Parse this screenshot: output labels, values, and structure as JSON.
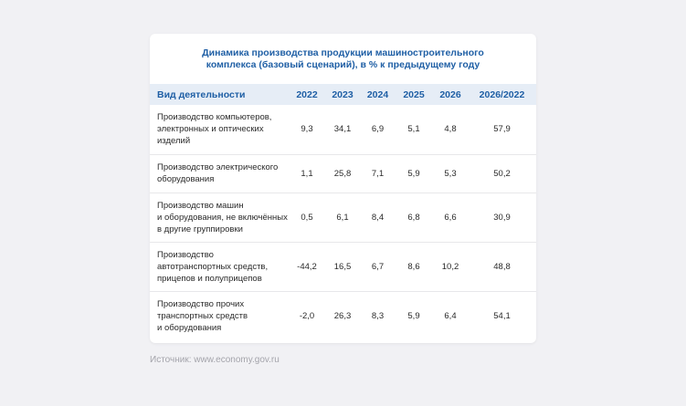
{
  "title": {
    "line1": "Динамика производства продукции машиностроительного",
    "line2": "комплекса (базовый сценарий), в % к предыдущему году"
  },
  "table": {
    "headers": [
      "Вид деятельности",
      "2022",
      "2023",
      "2024",
      "2025",
      "2026",
      "2026/2022"
    ],
    "rows": [
      {
        "label": "Производство компьютеров,\nэлектронных и оптических\nизделий",
        "values": [
          "9,3",
          "34,1",
          "6,9",
          "5,1",
          "4,8",
          "57,9"
        ]
      },
      {
        "label": "Производство электрического\nоборудования",
        "values": [
          "1,1",
          "25,8",
          "7,1",
          "5,9",
          "5,3",
          "50,2"
        ]
      },
      {
        "label": "Производство машин\nи оборудования, не включённых\nв другие группировки",
        "values": [
          "0,5",
          "6,1",
          "8,4",
          "6,8",
          "6,6",
          "30,9"
        ]
      },
      {
        "label": "Производство\nавтотранспортных средств,\nприцепов и полуприцепов",
        "values": [
          "-44,2",
          "16,5",
          "6,7",
          "8,6",
          "10,2",
          "48,8"
        ]
      },
      {
        "label": "Производство прочих\nтранспортных средств\nи оборудования",
        "values": [
          "-2,0",
          "26,3",
          "8,3",
          "5,9",
          "6,4",
          "54,1"
        ]
      }
    ]
  },
  "source": "Источник: www.economy.gov.ru",
  "colors": {
    "accent": "#1f5fa5",
    "header_bg": "#e6edf6",
    "page_bg": "#f1f1f4"
  }
}
